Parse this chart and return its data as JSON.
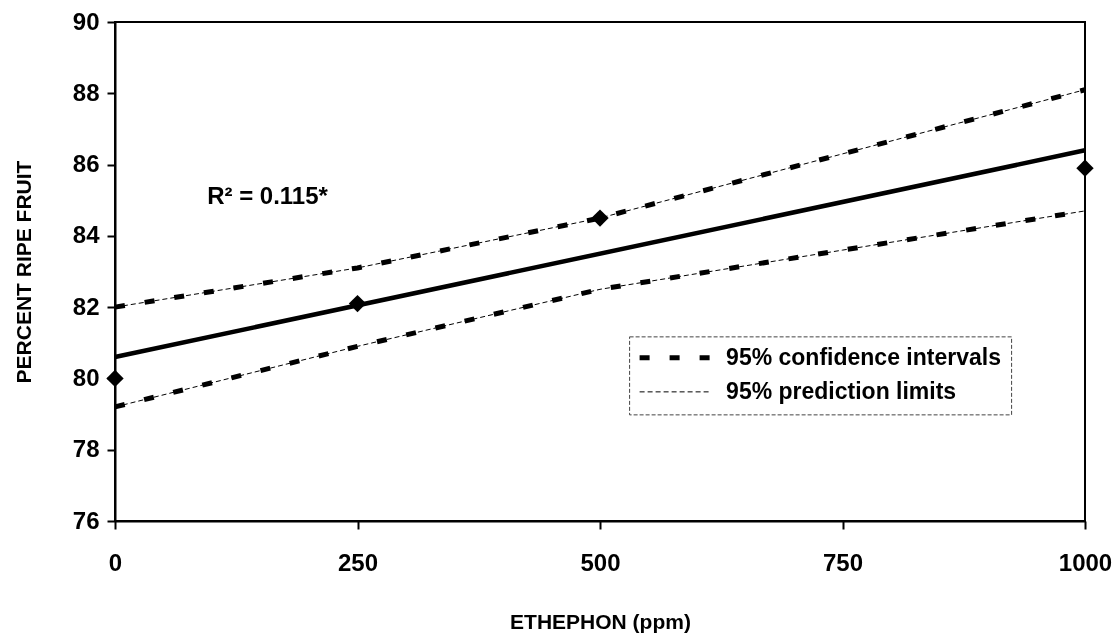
{
  "chart_data": {
    "type": "line",
    "xlabel": "ETHEPHON (ppm)",
    "ylabel": "PERCENT RIPE FRUIT",
    "annotations": [
      "R² = 0.115*"
    ],
    "xlim": [
      0,
      1000
    ],
    "xticks": [
      0,
      250,
      500,
      750,
      1000
    ],
    "ylim": [
      76,
      90
    ],
    "yticks": [
      76,
      78,
      80,
      82,
      84,
      86,
      88,
      90
    ],
    "grid": false,
    "legend": "bottom right",
    "series": [
      {
        "type": "scatter",
        "color": "#000000",
        "marker": "diamond",
        "x": [
          0,
          250,
          500,
          1000
        ],
        "values": [
          80.0,
          82.1,
          84.5,
          85.9
        ]
      },
      {
        "color": "#000000",
        "line_style": "solid",
        "x": [
          0,
          1000
        ],
        "values": [
          80.6,
          86.4
        ]
      },
      {
        "name": "95% confidence intervals",
        "color": "#000000",
        "line_style": "dashed",
        "x": [
          0,
          250,
          500,
          750,
          1000
        ],
        "values": [
          82.0,
          83.1,
          84.5,
          86.3,
          88.1
        ]
      },
      {
        "color": "#000000",
        "line_style": "dashed",
        "x": [
          0,
          250,
          500,
          750,
          1000
        ],
        "values": [
          79.2,
          80.9,
          82.5,
          83.6,
          84.7
        ]
      },
      {
        "name": "95% prediction limits",
        "color": "#000000",
        "line_style": "dotted",
        "x": [
          0,
          250,
          500,
          750,
          1000
        ],
        "values": [
          82.0,
          83.1,
          84.5,
          86.3,
          88.1
        ]
      },
      {
        "color": "#000000",
        "line_style": "dotted",
        "x": [
          0,
          250,
          500,
          750,
          1000
        ],
        "values": [
          79.2,
          80.9,
          82.5,
          83.6,
          84.7
        ]
      }
    ]
  }
}
